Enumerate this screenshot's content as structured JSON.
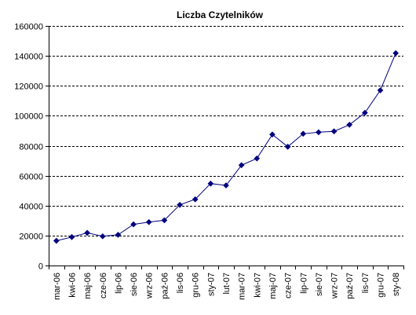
{
  "chart_data": {
    "type": "line",
    "title": "Liczba Czytelników",
    "xlabel": "",
    "ylabel": "",
    "ylim": [
      0,
      160000
    ],
    "yticks": [
      0,
      20000,
      40000,
      60000,
      80000,
      100000,
      120000,
      140000,
      160000
    ],
    "ytick_labels": [
      "0",
      "20000",
      "40000",
      "60000",
      "80000",
      "100000",
      "120000",
      "140000",
      "160000"
    ],
    "grid": "horizontal-dashed",
    "legend": "none",
    "line_color": "#00007f",
    "marker": "diamond",
    "categories": [
      "mar-06",
      "kwi-06",
      "maj-06",
      "cze-06",
      "lip-06",
      "sie-06",
      "wrz-06",
      "paź-06",
      "lis-06",
      "gru-06",
      "sty-07",
      "lut-07",
      "mar-07",
      "kwi-07",
      "maj-07",
      "cze-07",
      "lip-07",
      "sie-07",
      "wrz-07",
      "paź-07",
      "lis-07",
      "gru-07",
      "sty-08"
    ],
    "values": [
      16500,
      19000,
      21800,
      19500,
      20500,
      27500,
      29000,
      30200,
      40500,
      44200,
      54700,
      53500,
      67000,
      71500,
      87500,
      79300,
      88000,
      89000,
      89600,
      94000,
      102000,
      117000,
      141800
    ]
  }
}
